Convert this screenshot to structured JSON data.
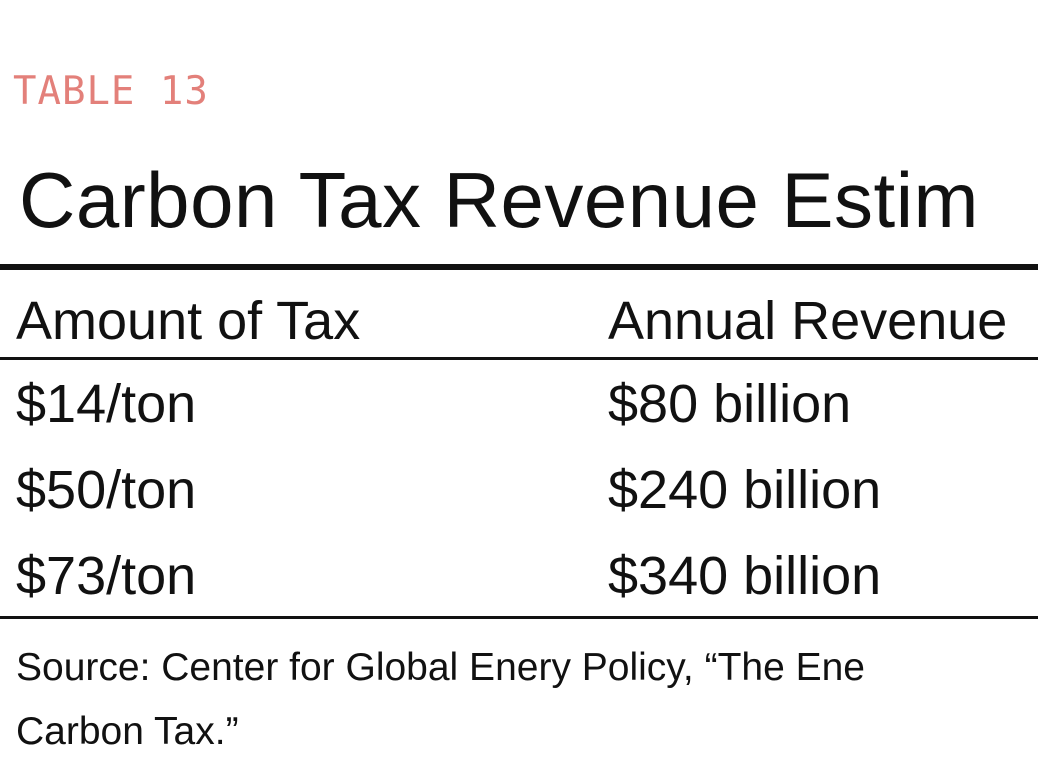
{
  "table_label": "TABLE 13",
  "title": "Carbon Tax Revenue Estim",
  "table": {
    "headers": [
      "Amount of Tax",
      "Annual Revenue"
    ],
    "rows": [
      [
        "$14/ton",
        "$80 billion"
      ],
      [
        "$50/ton",
        "$240 billion"
      ],
      [
        "$73/ton",
        "$340 billion"
      ]
    ]
  },
  "source": {
    "label": "Source:",
    "line1": "Center for Global Enery Policy, “The Ene",
    "line2": "Carbon Tax.”"
  },
  "colors": {
    "label": "#e3807a",
    "text": "#111111",
    "background": "#ffffff"
  }
}
